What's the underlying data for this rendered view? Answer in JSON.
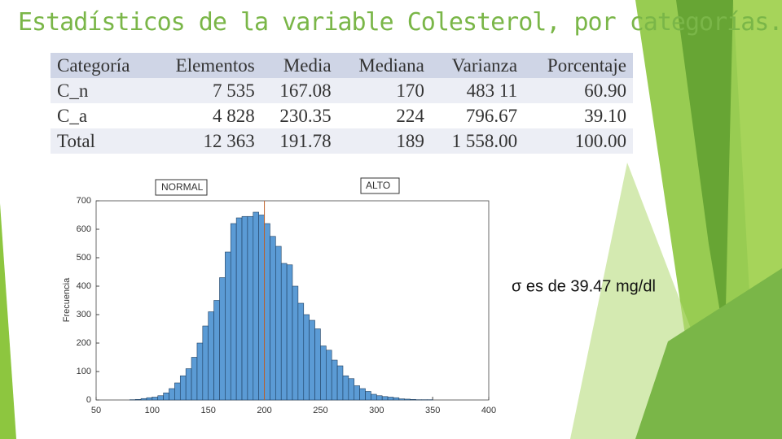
{
  "title": "Estadísticos de la variable Colesterol, por categorías.",
  "table": {
    "header": [
      "Categoría",
      "Elementos",
      "Media",
      "Mediana",
      "Varianza",
      "Porcentaje"
    ],
    "rows": [
      [
        "C_n",
        "7 535",
        "167.08",
        "170",
        "483 11",
        "60.90"
      ],
      [
        "C_a",
        "4 828",
        "230.35",
        "224",
        "796.67",
        "39.10"
      ],
      [
        "Total",
        "12 363",
        "191.78",
        "189",
        "1 558.00",
        "100.00"
      ]
    ]
  },
  "chart_data": {
    "type": "histogram",
    "ylabel": "Frecuencia",
    "bins": [
      80,
      85,
      90,
      95,
      100,
      105,
      110,
      115,
      120,
      125,
      130,
      135,
      140,
      145,
      150,
      155,
      160,
      165,
      170,
      175,
      180,
      185,
      190,
      195,
      200,
      205,
      210,
      215,
      220,
      225,
      230,
      235,
      240,
      245,
      250,
      255,
      260,
      265,
      270,
      275,
      280,
      285,
      290,
      295,
      300,
      305,
      310,
      315,
      320,
      325,
      330,
      335,
      340,
      345,
      350
    ],
    "counts": [
      1,
      2,
      5,
      8,
      10,
      15,
      25,
      40,
      60,
      85,
      110,
      150,
      200,
      260,
      310,
      350,
      430,
      520,
      620,
      640,
      645,
      645,
      660,
      650,
      620,
      575,
      540,
      480,
      475,
      400,
      340,
      300,
      280,
      250,
      190,
      175,
      140,
      120,
      85,
      75,
      50,
      40,
      30,
      20,
      15,
      12,
      10,
      8,
      4,
      3,
      2,
      1,
      1,
      1
    ],
    "color": "#5b9bd5",
    "xlim": [
      50,
      400
    ],
    "xticks": [
      50,
      100,
      150,
      200,
      250,
      300,
      350,
      400
    ],
    "ylim": [
      0,
      700
    ],
    "yticks": [
      0,
      100,
      200,
      300,
      400,
      500,
      600,
      700
    ],
    "reference_line": 200,
    "annotations": [
      "NORMAL",
      "ALTO"
    ],
    "note": "σ es de 39.47 mg/dl"
  }
}
